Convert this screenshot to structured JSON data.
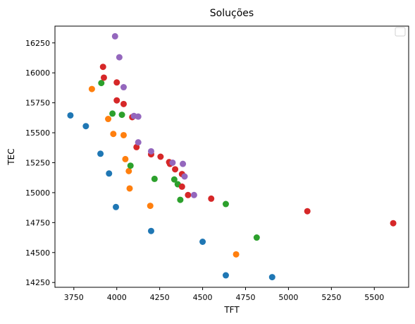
{
  "chart_data": {
    "type": "scatter",
    "title": "Soluções",
    "xlabel": "TFT",
    "ylabel": "TEC",
    "xlim": [
      3640,
      5700
    ],
    "ylim": [
      14210,
      16390
    ],
    "xticks": [
      3750,
      4000,
      4250,
      4500,
      4750,
      5000,
      5250,
      5500
    ],
    "yticks": [
      14250,
      14500,
      14750,
      15000,
      15250,
      15500,
      15750,
      16000,
      16250
    ],
    "grid": false,
    "legend": "upper right, empty box",
    "series": [
      {
        "color": "#1f77b4",
        "points": [
          [
            3730,
            15645
          ],
          [
            3820,
            15555
          ],
          [
            3905,
            15325
          ],
          [
            3955,
            15160
          ],
          [
            3995,
            14880
          ],
          [
            4200,
            14680
          ],
          [
            4500,
            14590
          ],
          [
            4635,
            14310
          ],
          [
            4905,
            14295
          ]
        ]
      },
      {
        "color": "#ff7f0e",
        "points": [
          [
            3855,
            15865
          ],
          [
            3950,
            15615
          ],
          [
            3980,
            15490
          ],
          [
            4040,
            15480
          ],
          [
            4050,
            15280
          ],
          [
            4070,
            15180
          ],
          [
            4075,
            15035
          ],
          [
            4195,
            14890
          ],
          [
            4695,
            14485
          ]
        ]
      },
      {
        "color": "#2ca02c",
        "points": [
          [
            3910,
            15915
          ],
          [
            3975,
            15660
          ],
          [
            4030,
            15650
          ],
          [
            4080,
            15225
          ],
          [
            4220,
            15115
          ],
          [
            4335,
            15110
          ],
          [
            4355,
            15070
          ],
          [
            4370,
            14940
          ],
          [
            4635,
            14905
          ],
          [
            4815,
            14625
          ]
        ]
      },
      {
        "color": "#d62728",
        "points": [
          [
            3920,
            16050
          ],
          [
            3925,
            15960
          ],
          [
            4000,
            15920
          ],
          [
            4000,
            15770
          ],
          [
            4040,
            15740
          ],
          [
            4090,
            15630
          ],
          [
            4115,
            15380
          ],
          [
            4200,
            15320
          ],
          [
            4255,
            15300
          ],
          [
            4305,
            15255
          ],
          [
            4310,
            15240
          ],
          [
            4340,
            15195
          ],
          [
            4380,
            15155
          ],
          [
            4380,
            15050
          ],
          [
            4415,
            14980
          ],
          [
            4550,
            14950
          ],
          [
            5110,
            14845
          ],
          [
            5610,
            14745
          ]
        ]
      },
      {
        "color": "#9467bd",
        "points": [
          [
            3990,
            16305
          ],
          [
            4015,
            16130
          ],
          [
            4040,
            15880
          ],
          [
            4100,
            15640
          ],
          [
            4125,
            15635
          ],
          [
            4125,
            15420
          ],
          [
            4200,
            15345
          ],
          [
            4325,
            15250
          ],
          [
            4385,
            15240
          ],
          [
            4395,
            15135
          ],
          [
            4450,
            14980
          ]
        ]
      }
    ]
  }
}
